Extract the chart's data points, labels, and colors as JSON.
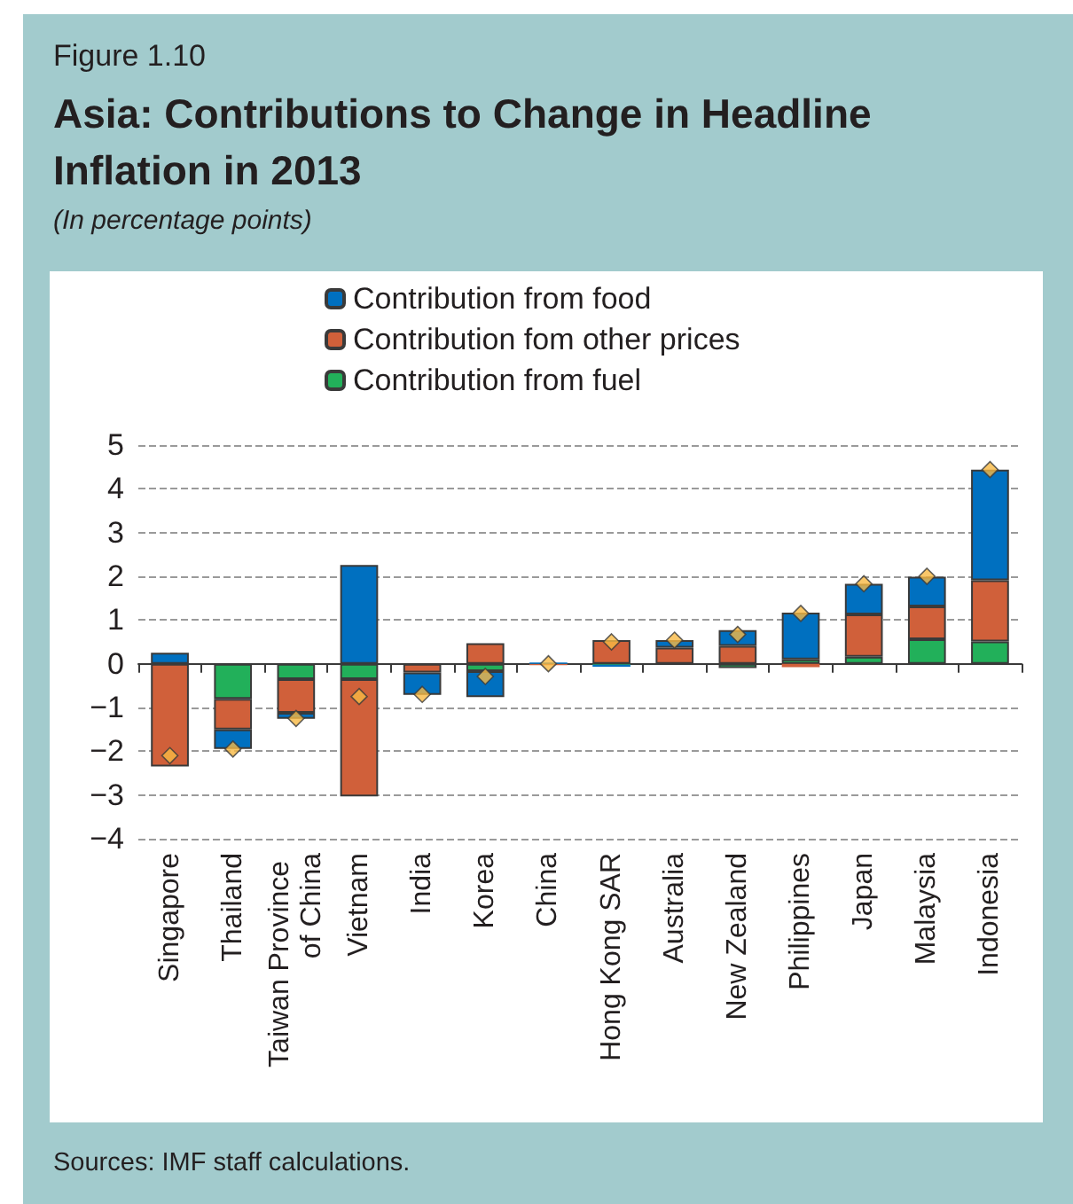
{
  "chart_data": {
    "type": "bar",
    "title": "Asia: Contributions to Change in Headline Inflation in 2013",
    "subtitle": "(In percentage points)",
    "annotations": [
      "Figure 1.10",
      "Sources: IMF staff calculations."
    ],
    "categories": [
      "Singapore",
      "Thailand",
      "Taiwan Province of China",
      "Vietnam",
      "India",
      "Korea",
      "China",
      "Hong Kong SAR",
      "Australia",
      "New Zealand",
      "Philippines",
      "Japan",
      "Malaysia",
      "Indonesia"
    ],
    "stacked": true,
    "series": [
      {
        "name": "Contribution from fuel",
        "color": "#22b05a",
        "values": [
          0,
          -0.8,
          -0.35,
          -0.35,
          0,
          -0.17,
          0,
          -0.02,
          0,
          -0.1,
          0.1,
          0.16,
          0.56,
          0.51
        ]
      },
      {
        "name": "Contribution fom other prices",
        "color": "#d0603a",
        "values": [
          -2.35,
          -0.7,
          -0.77,
          -2.68,
          -0.2,
          0.47,
          -0.03,
          0.54,
          0.37,
          0.41,
          -0.08,
          0.97,
          0.75,
          1.4
        ]
      },
      {
        "name": "Contribution from food",
        "color": "#0070c0",
        "values": [
          0.25,
          -0.45,
          -0.14,
          2.26,
          -0.51,
          -0.59,
          0.03,
          -0.05,
          0.17,
          0.36,
          1.07,
          0.7,
          0.68,
          2.53
        ]
      },
      {
        "type": "scatter",
        "marker": "diamond",
        "color": "#f7b944",
        "x": [
          "Singapore",
          "Thailand",
          "Taiwan Province of China",
          "Vietnam",
          "India",
          "Korea",
          "China",
          "Hong Kong SAR",
          "Australia",
          "New Zealand",
          "Philippines",
          "Japan",
          "Malaysia",
          "Indonesia"
        ],
        "values": [
          -2.1,
          -1.95,
          -1.25,
          -0.75,
          -0.7,
          -0.29,
          0,
          0.5,
          0.54,
          0.67,
          1.15,
          1.83,
          2.0,
          4.44
        ]
      }
    ],
    "ylim": [
      -4,
      5
    ],
    "yticks": [
      -4,
      -3,
      -2,
      -1,
      0,
      1,
      2,
      3,
      4,
      5
    ],
    "grid": "y",
    "legend": "top"
  }
}
